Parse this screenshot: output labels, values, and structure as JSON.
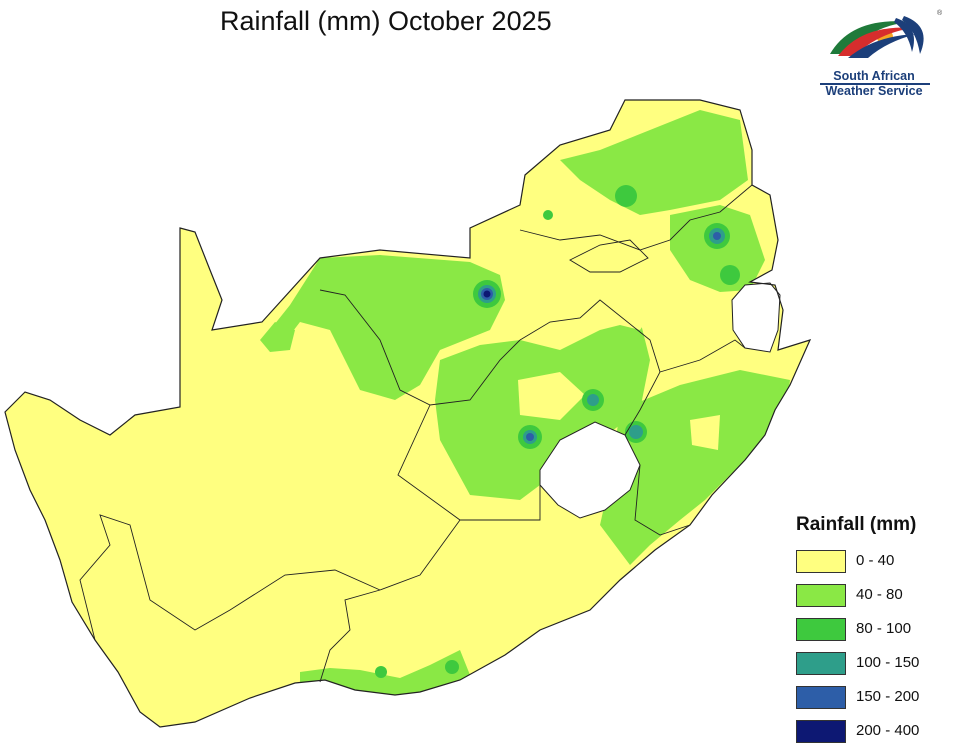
{
  "title": "Rainfall (mm) October 2025",
  "logo": {
    "name": "South African Weather Service",
    "line1": "South African",
    "line2": "Weather Service",
    "registered": "®"
  },
  "legend": {
    "title": "Rainfall (mm)",
    "items": [
      {
        "label": "0 - 40",
        "color": "#ffff80"
      },
      {
        "label": "40 - 80",
        "color": "#8ae845"
      },
      {
        "label": "80 - 100",
        "color": "#3ec93e"
      },
      {
        "label": "100 - 150",
        "color": "#2e9e8a"
      },
      {
        "label": "150 - 200",
        "color": "#2d5ea8"
      },
      {
        "label": "200 - 400",
        "color": "#0d1873"
      }
    ]
  },
  "colors": {
    "border": "#222222",
    "no_data": "#ffffff"
  }
}
